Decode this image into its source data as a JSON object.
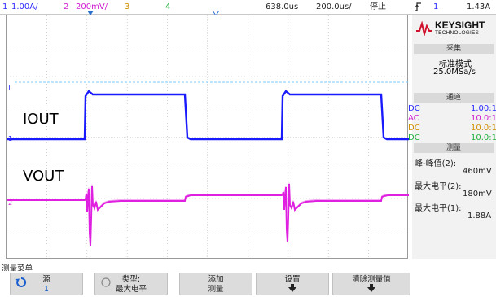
{
  "topbar": {
    "ch1_num": "1",
    "ch1_scale": "1.00A/",
    "ch2_num": "2",
    "ch2_scale": "200mV/",
    "ch3_num": "3",
    "ch4_num": "4",
    "time_pos": "638.0us",
    "time_scale": "200.0us/",
    "run_status": "停止",
    "trigger_icon": "trigger-edge-icon",
    "trig_channel": "1",
    "trig_level": "1.43A"
  },
  "plot": {
    "label_iout": "IOUT",
    "label_vout": "VOUT",
    "marker_t": "T",
    "marker_1": "1",
    "marker_2": "2"
  },
  "panel": {
    "brand": "KEYSIGHT",
    "brand_sub": "TECHNOLOGIES",
    "acq_header": "采集",
    "acq_mode": "标准模式",
    "acq_rate": "25.0MSa/s",
    "channel_header": "通道",
    "channels": [
      {
        "coupling": "DC",
        "ratio": "1.00:1"
      },
      {
        "coupling": "AC",
        "ratio": "10.0:1"
      },
      {
        "coupling": "DC",
        "ratio": "10.0:1"
      },
      {
        "coupling": "DC",
        "ratio": "10.0:1"
      }
    ],
    "meas_header": "测量",
    "measurements": [
      {
        "label": "峰-峰值(2):",
        "value": "460mV"
      },
      {
        "label": "最大电平(2):",
        "value": "180mV"
      },
      {
        "label": "最大电平(1):",
        "value": "1.88A"
      }
    ]
  },
  "menu": {
    "title": "测量菜单",
    "softkeys": [
      {
        "line1": "源",
        "line2": "1"
      },
      {
        "line1": "类型:",
        "line2": "最大电平"
      },
      {
        "line1": "添加",
        "line2": "测量"
      },
      {
        "line1": "设置",
        "line2": ""
      },
      {
        "line1": "清除测量值",
        "line2": ""
      }
    ]
  },
  "colors": {
    "ch1": "#1a1aff",
    "ch2": "#e020e0",
    "ch3": "#e0a000",
    "ch4": "#20c040",
    "grid": "#b8b8b8",
    "trigger_line": "#7ec8ff"
  }
}
